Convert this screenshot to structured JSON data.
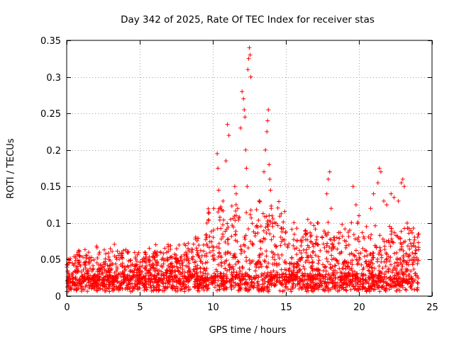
{
  "chart_data": {
    "type": "scatter",
    "title": "Day 342 of 2025, Rate Of TEC Index for receiver stas",
    "xlabel": "GPS time / hours",
    "ylabel": "ROTI / TECUs",
    "xlim": [
      0,
      25
    ],
    "ylim": [
      0,
      0.35
    ],
    "xticks": [
      0,
      5,
      10,
      15,
      20,
      25
    ],
    "yticks": [
      0,
      0.05,
      0.1,
      0.15,
      0.2,
      0.25,
      0.3,
      0.35
    ],
    "grid": true,
    "marker": "plus",
    "color": "#ff0000",
    "series": [
      {
        "x": [
          0.1,
          0.2,
          0.4,
          1.5,
          2.9,
          3.8,
          5.0,
          6.5,
          8.3,
          9.6,
          10.3,
          10.35,
          10.4,
          10.5,
          10.7,
          10.9,
          11.0,
          11.1,
          11.5,
          11.6,
          11.7,
          11.9,
          12.0,
          12.1,
          12.15,
          12.2,
          12.25,
          12.3,
          12.35,
          12.4,
          12.45,
          12.5,
          12.55,
          12.6,
          13.2,
          13.5,
          13.6,
          13.7,
          13.75,
          13.8,
          13.85,
          13.9,
          13.95,
          14.0,
          16.5,
          16.7,
          17.8,
          17.9,
          18.0,
          18.1,
          19.6,
          19.8,
          20.0,
          20.8,
          21.0,
          21.3,
          21.4,
          21.5,
          21.7,
          21.9,
          22.2,
          22.4,
          22.7,
          22.9,
          23.0,
          23.1,
          23.3,
          24.1
        ],
        "y": [
          0.045,
          0.046,
          0.045,
          0.06,
          0.05,
          0.058,
          0.04,
          0.05,
          0.065,
          0.1,
          0.195,
          0.175,
          0.145,
          0.12,
          0.13,
          0.185,
          0.235,
          0.22,
          0.15,
          0.14,
          0.12,
          0.23,
          0.28,
          0.27,
          0.255,
          0.245,
          0.2,
          0.175,
          0.15,
          0.31,
          0.325,
          0.34,
          0.33,
          0.3,
          0.13,
          0.17,
          0.2,
          0.225,
          0.24,
          0.255,
          0.18,
          0.16,
          0.145,
          0.12,
          0.105,
          0.1,
          0.14,
          0.16,
          0.17,
          0.12,
          0.15,
          0.125,
          0.11,
          0.12,
          0.14,
          0.155,
          0.175,
          0.17,
          0.13,
          0.125,
          0.14,
          0.135,
          0.13,
          0.155,
          0.16,
          0.15,
          0.1,
          0.085
        ]
      }
    ]
  }
}
